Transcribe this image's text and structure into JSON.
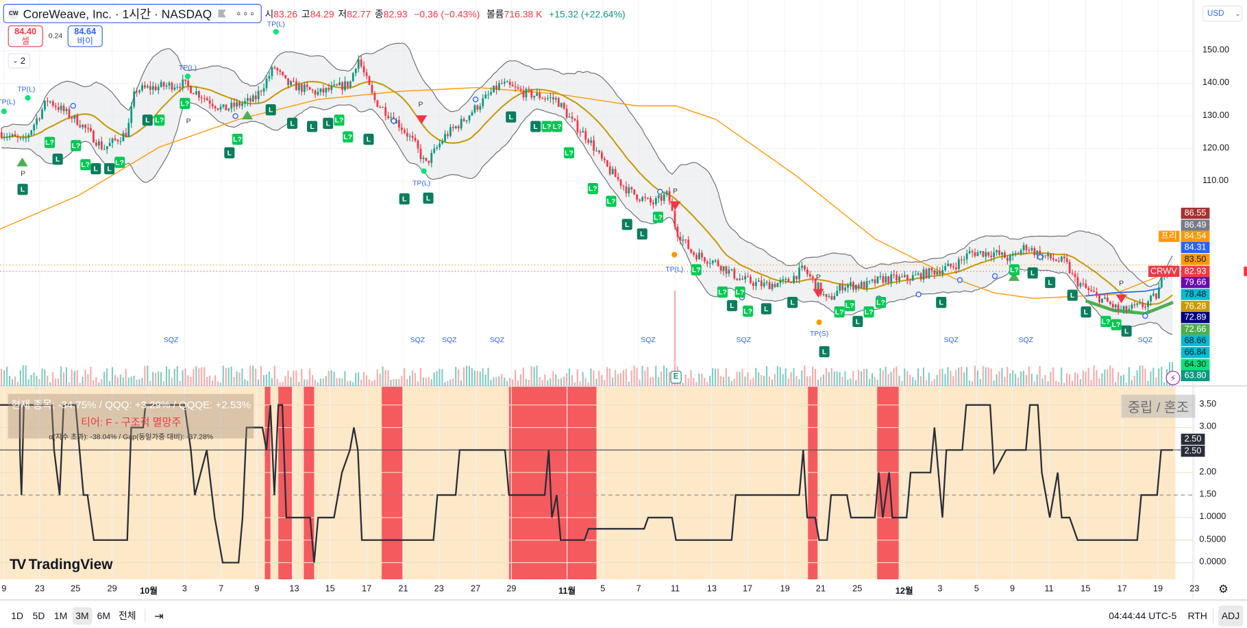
{
  "header": {
    "symbol_title": "CoreWeave, Inc. · 1시간 · NASDAQ",
    "logo_text": "CW",
    "more": "∘∘∘",
    "ohlc": [
      {
        "label": "시",
        "value": "83.26"
      },
      {
        "label": "고",
        "value": "84.29"
      },
      {
        "label": "저",
        "value": "82.77"
      },
      {
        "label": "종",
        "value": "82.93"
      }
    ],
    "change": "−0.36 (−0.43%)",
    "volume_label": "볼륨",
    "volume_value": "716.38 K",
    "volume_change": "+15.32 (+22.64%)"
  },
  "trade": {
    "sell_price": "84.40",
    "sell_label": "셀",
    "spread": "0.24",
    "buy_price": "84.64",
    "buy_label": "바이",
    "collapse_count": "2"
  },
  "currency": "USD",
  "price_axis": [
    "150.00",
    "140.00",
    "130.00",
    "120.00",
    "110.00"
  ],
  "price_tags": [
    {
      "value": "86.55",
      "color": "#a33232",
      "fg": "#ffffff"
    },
    {
      "value": "86.49",
      "color": "#787b86",
      "fg": "#ffffff"
    },
    {
      "value": "84.54",
      "color": "#ff9800",
      "fg": "#ffffff",
      "side": "프리"
    },
    {
      "value": "84.31",
      "color": "#2962ff",
      "fg": "#ffffff"
    },
    {
      "value": "83.50",
      "color": "#ff9800",
      "fg": "#131722"
    },
    {
      "value": "82.93",
      "color": "#f23645",
      "fg": "#ffffff",
      "side": "CRWV"
    },
    {
      "value": "79.66",
      "color": "#6a0dad",
      "fg": "#ffffff"
    },
    {
      "value": "78.48",
      "color": "#00bcd4",
      "fg": "#131722"
    },
    {
      "value": "76.28",
      "color": "#c99a06",
      "fg": "#ffffff"
    },
    {
      "value": "72.89",
      "color": "#000080",
      "fg": "#ffffff"
    },
    {
      "value": "72.66",
      "color": "#4caf50",
      "fg": "#ffffff"
    },
    {
      "value": "68.66",
      "color": "#00bcd4",
      "fg": "#131722"
    },
    {
      "value": "66.84",
      "color": "#00bcd4",
      "fg": "#131722"
    },
    {
      "value": "64.30",
      "color": "#00e676",
      "fg": "#131722"
    },
    {
      "value": "63.80",
      "color": "#089981",
      "fg": "#ffffff"
    }
  ],
  "markers": {
    "long": "L",
    "long_q": "L?",
    "tp_long": "TP(L)",
    "tp_short": "TP(S)",
    "pivot": "P",
    "sqz": "SQZ",
    "earnings": "E"
  },
  "indicator": {
    "line1": "현재 종목: -34.75% / QQQ: +3.29% / QQQE: +2.53%",
    "line2": "티어: F - 구조적 멸망주",
    "line3": "α(지수 초과): -38.04% / Gap(동일가중 대비): -37.28%",
    "state": "중립 / 혼조",
    "axis": [
      "3.50",
      "3.00",
      "2.00",
      "1.50",
      "1.0000",
      "0.5000",
      "0.0000"
    ],
    "current_tags": [
      "2.50",
      "2.50"
    ]
  },
  "brand": "TradingView",
  "x_axis": [
    "9",
    "23",
    "25",
    "29",
    "10월",
    "3",
    "7",
    "9",
    "13",
    "15",
    "17",
    "21",
    "23",
    "27",
    "29",
    "11월",
    "5",
    "7",
    "11",
    "13",
    "17",
    "19",
    "21",
    "25",
    "12월",
    "3",
    "5",
    "9",
    "11",
    "15",
    "17",
    "19",
    "23"
  ],
  "toolbar": {
    "ranges": [
      "1D",
      "5D",
      "1M",
      "3M",
      "6M",
      "전체"
    ],
    "selected": "3M",
    "time": "04:44:44 UTC-5",
    "session": "RTH",
    "adj": "ADJ"
  },
  "colors": {
    "up": "#089981",
    "down": "#f23645",
    "accent": "#2962ff",
    "ma_long": "#ff9800",
    "ma_mid": "#c99a06",
    "indicator_bg": "#fde8c8",
    "indicator_alert": "#f23645"
  }
}
